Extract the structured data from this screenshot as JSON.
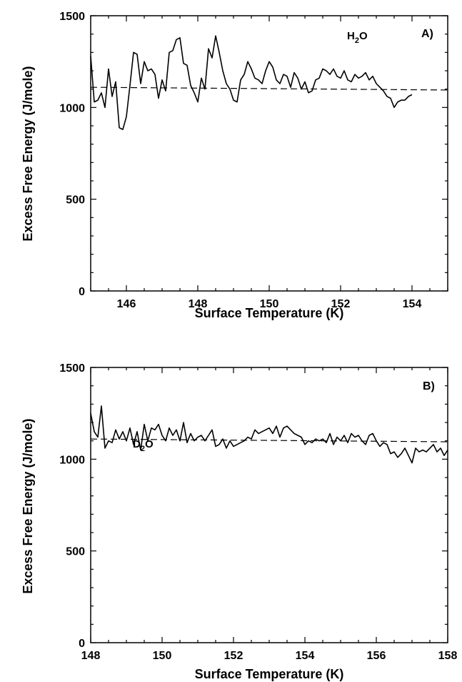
{
  "chart_data": [
    {
      "type": "line",
      "panel_label": "A)",
      "species_label": {
        "main": "H",
        "sub": "2",
        "tail": "O"
      },
      "xlabel": "Surface Temperature (K)",
      "ylabel": "Excess Free Energy (J/mole)",
      "xlim": [
        145,
        155
      ],
      "ylim": [
        0,
        1500
      ],
      "xticks": [
        146,
        148,
        150,
        152,
        154
      ],
      "yticks": [
        0,
        500,
        1000,
        1500
      ],
      "grid": false,
      "series": [
        {
          "style": "solid",
          "x": [
            145.0,
            145.1,
            145.2,
            145.3,
            145.4,
            145.5,
            145.6,
            145.7,
            145.8,
            145.9,
            146.0,
            146.1,
            146.2,
            146.3,
            146.4,
            146.5,
            146.6,
            146.7,
            146.8,
            146.9,
            147.0,
            147.1,
            147.2,
            147.3,
            147.4,
            147.5,
            147.6,
            147.7,
            147.8,
            147.9,
            148.0,
            148.1,
            148.2,
            148.3,
            148.4,
            148.5,
            148.6,
            148.7,
            148.8,
            148.9,
            149.0,
            149.1,
            149.2,
            149.3,
            149.4,
            149.5,
            149.6,
            149.7,
            149.8,
            149.9,
            150.0,
            150.1,
            150.2,
            150.3,
            150.4,
            150.5,
            150.6,
            150.7,
            150.8,
            150.9,
            151.0,
            151.1,
            151.2,
            151.3,
            151.4,
            151.5,
            151.6,
            151.7,
            151.8,
            151.9,
            152.0,
            152.1,
            152.2,
            152.3,
            152.4,
            152.5,
            152.6,
            152.7,
            152.8,
            152.9,
            153.0,
            153.1,
            153.2,
            153.3,
            153.4,
            153.5,
            153.6,
            153.7,
            153.8,
            153.9,
            154.0
          ],
          "y": [
            1280,
            1030,
            1040,
            1080,
            1000,
            1210,
            1060,
            1140,
            890,
            880,
            950,
            1120,
            1300,
            1290,
            1130,
            1250,
            1200,
            1210,
            1180,
            1050,
            1150,
            1090,
            1300,
            1310,
            1370,
            1380,
            1240,
            1230,
            1120,
            1080,
            1030,
            1160,
            1100,
            1320,
            1270,
            1390,
            1300,
            1200,
            1130,
            1100,
            1040,
            1030,
            1150,
            1180,
            1250,
            1210,
            1160,
            1150,
            1130,
            1200,
            1250,
            1220,
            1150,
            1130,
            1180,
            1170,
            1110,
            1190,
            1160,
            1100,
            1140,
            1080,
            1090,
            1150,
            1160,
            1210,
            1200,
            1180,
            1210,
            1170,
            1160,
            1200,
            1150,
            1140,
            1180,
            1160,
            1170,
            1190,
            1150,
            1170,
            1130,
            1110,
            1090,
            1060,
            1050,
            1000,
            1030,
            1040,
            1040,
            1060,
            1070
          ]
        },
        {
          "style": "dashed",
          "x": [
            145.0,
            155.0
          ],
          "y": [
            1110,
            1095
          ]
        }
      ]
    },
    {
      "type": "line",
      "panel_label": "B)",
      "species_label": {
        "main": "D",
        "sub": "2",
        "tail": "O"
      },
      "xlabel": "Surface Temperature (K)",
      "ylabel": "Excess Free Energy  (J/mole)",
      "xlim": [
        148,
        158
      ],
      "ylim": [
        0,
        1500
      ],
      "xticks": [
        148,
        150,
        152,
        154,
        156,
        158
      ],
      "yticks": [
        0,
        500,
        1000,
        1500
      ],
      "grid": false,
      "series": [
        {
          "style": "solid",
          "x": [
            148.0,
            148.1,
            148.2,
            148.3,
            148.4,
            148.5,
            148.6,
            148.7,
            148.8,
            148.9,
            149.0,
            149.1,
            149.2,
            149.3,
            149.4,
            149.5,
            149.6,
            149.7,
            149.8,
            149.9,
            150.0,
            150.1,
            150.2,
            150.3,
            150.4,
            150.5,
            150.6,
            150.7,
            150.8,
            150.9,
            151.0,
            151.1,
            151.2,
            151.3,
            151.4,
            151.5,
            151.6,
            151.7,
            151.8,
            151.9,
            152.0,
            152.1,
            152.2,
            152.3,
            152.4,
            152.5,
            152.6,
            152.7,
            152.8,
            152.9,
            153.0,
            153.1,
            153.2,
            153.3,
            153.4,
            153.5,
            153.6,
            153.7,
            153.8,
            153.9,
            154.0,
            154.1,
            154.2,
            154.3,
            154.4,
            154.5,
            154.6,
            154.7,
            154.8,
            154.9,
            155.0,
            155.1,
            155.2,
            155.3,
            155.4,
            155.5,
            155.6,
            155.7,
            155.8,
            155.9,
            156.0,
            156.1,
            156.2,
            156.3,
            156.4,
            156.5,
            156.6,
            156.7,
            156.8,
            156.9,
            157.0,
            157.1,
            157.2,
            157.3,
            157.4,
            157.5,
            157.6,
            157.7,
            157.8,
            157.9,
            158.0
          ],
          "y": [
            1250,
            1150,
            1120,
            1290,
            1060,
            1100,
            1090,
            1160,
            1110,
            1150,
            1100,
            1170,
            1080,
            1150,
            1050,
            1190,
            1100,
            1170,
            1160,
            1190,
            1130,
            1100,
            1170,
            1130,
            1160,
            1100,
            1200,
            1090,
            1140,
            1100,
            1120,
            1130,
            1100,
            1130,
            1160,
            1070,
            1080,
            1110,
            1060,
            1100,
            1070,
            1080,
            1090,
            1100,
            1120,
            1110,
            1160,
            1140,
            1150,
            1160,
            1170,
            1140,
            1180,
            1120,
            1170,
            1180,
            1160,
            1140,
            1130,
            1120,
            1080,
            1100,
            1090,
            1110,
            1100,
            1110,
            1090,
            1140,
            1080,
            1120,
            1100,
            1130,
            1090,
            1140,
            1120,
            1130,
            1100,
            1080,
            1130,
            1140,
            1100,
            1070,
            1090,
            1080,
            1030,
            1040,
            1010,
            1030,
            1060,
            1020,
            980,
            1060,
            1040,
            1050,
            1040,
            1060,
            1080,
            1040,
            1060,
            1020,
            1050
          ]
        },
        {
          "style": "dashed",
          "x": [
            148.0,
            158.0
          ],
          "y": [
            1110,
            1095
          ]
        }
      ]
    }
  ]
}
